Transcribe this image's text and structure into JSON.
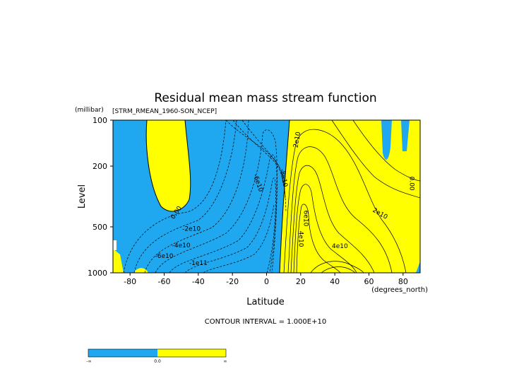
{
  "chart_data": {
    "type": "contour",
    "title": "Residual mean mass stream function",
    "subtitle": "[STRM_RMEAN_1960-SON_NCEP]",
    "xlabel": "Latitude",
    "xunits": "(degrees_north)",
    "ylabel": "Level",
    "yunits": "(millibar)",
    "xlim": [
      -90,
      90
    ],
    "ylim": [
      1000,
      100
    ],
    "yscale": "log",
    "xticks": [
      -80,
      -60,
      -40,
      -20,
      0,
      20,
      40,
      60,
      80
    ],
    "yticks": [
      100,
      200,
      500,
      1000
    ],
    "fill_colors": {
      "negative": "#1fa8f0",
      "positive": "#ffff00"
    },
    "contour_labels": [
      {
        "text": "0.00",
        "lat": -52,
        "lev": 410,
        "rotate": -55
      },
      {
        "text": "-2e10",
        "lat": -44,
        "lev": 530,
        "rotate": 0
      },
      {
        "text": "-4e10",
        "lat": -50,
        "lev": 680,
        "rotate": 0
      },
      {
        "text": "-6e10",
        "lat": -60,
        "lev": 800,
        "rotate": 0
      },
      {
        "text": "-1e11",
        "lat": -40,
        "lev": 890,
        "rotate": 0
      },
      {
        "text": "-6e10",
        "lat": -6,
        "lev": 260,
        "rotate": 70
      },
      {
        "text": "-8e10",
        "lat": 9,
        "lev": 240,
        "rotate": 80
      },
      {
        "text": "2e10",
        "lat": 19,
        "lev": 135,
        "rotate": -80
      },
      {
        "text": "6e10",
        "lat": 22,
        "lev": 440,
        "rotate": 90
      },
      {
        "text": "4e10",
        "lat": 19,
        "lev": 600,
        "rotate": 90
      },
      {
        "text": "2e10",
        "lat": 66,
        "lev": 420,
        "rotate": 30
      },
      {
        "text": "4e10",
        "lat": 43,
        "lev": 690,
        "rotate": 0
      },
      {
        "text": "0.00",
        "lat": 84,
        "lev": 260,
        "rotate": 90
      }
    ],
    "contour_interval_text": "CONTOUR INTERVAL = 1.000E+10",
    "colorbar": {
      "labels": [
        "-∞",
        "0.0",
        "∞"
      ],
      "colors": [
        "#1fa8f0",
        "#ffff00"
      ]
    }
  }
}
